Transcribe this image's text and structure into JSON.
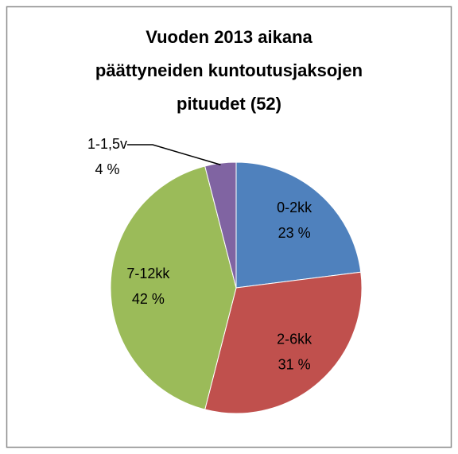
{
  "chart_data": {
    "type": "pie",
    "title": [
      "Vuoden 2013 aikana",
      "päättyneiden kuntoutusjaksojen",
      "pituudet (52)"
    ],
    "categories": [
      "0-2kk",
      "2-6kk",
      "7-12kk",
      "1-1,5v"
    ],
    "values": [
      23,
      31,
      42,
      4
    ],
    "value_labels": [
      "23 %",
      "31 %",
      "42 %",
      "4 %"
    ],
    "colors": [
      "#4f81bd",
      "#c0504d",
      "#9bbb59",
      "#8064a2"
    ]
  }
}
